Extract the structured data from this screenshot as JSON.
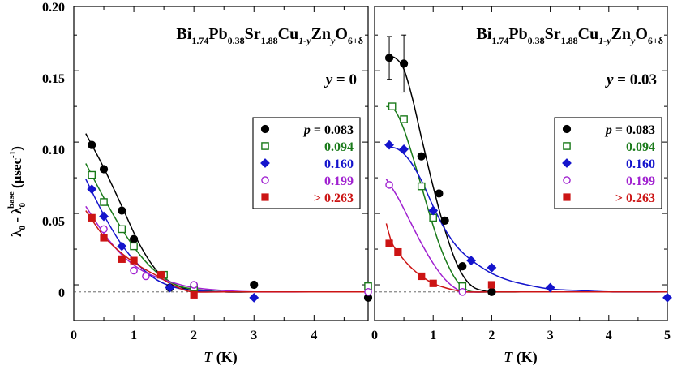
{
  "chart_data": {
    "type": "scatter",
    "ylabel": {
      "main": "λ",
      "sub0": "0",
      "mid": " - λ",
      "sub1": "0",
      "sup1": "base",
      "unit_open": " (μsec",
      "unit_sup": "-1",
      "unit_close": ")"
    },
    "ylim": [
      -0.02,
      0.2
    ],
    "yticks": [
      "0.20",
      "0.15",
      "0.10",
      "0.05",
      "0"
    ],
    "ytick_values": [
      0.2,
      0.15,
      0.1,
      0.05,
      0
    ],
    "panels": [
      {
        "id": "left",
        "formula": {
          "t1": "Bi",
          "s1": "1.74",
          "t2": "Pb",
          "s2": "0.38",
          "t3": "Sr",
          "s3": "1.88",
          "t4": "Cu",
          "s4": "1-y",
          "t5": "Zn",
          "s5": "y",
          "t6": "O",
          "s6": "6+δ"
        },
        "y_label": {
          "var": "y",
          "value": " = 0"
        },
        "xlabel": {
          "var": "T",
          "unit": " (K)"
        },
        "xlim": [
          0,
          4.9
        ],
        "xticks": [
          "0",
          "1",
          "2",
          "3",
          "4"
        ],
        "xtick_values": [
          0,
          1,
          2,
          3,
          4
        ],
        "series": [
          {
            "name": "p = 0.083",
            "label_var": "p",
            "label_rest": " = 0.083",
            "color": "#000000",
            "marker": "circle-filled",
            "x": [
              0.3,
              0.5,
              0.8,
              1.0,
              1.6,
              3.0,
              4.9
            ],
            "y": [
              0.103,
              0.086,
              0.057,
              0.037,
              0.003,
              0.005,
              -0.004
            ],
            "fit_x": [
              0.2,
              0.5,
              0.8,
              1.1,
              1.4,
              1.7,
              2.0,
              2.5,
              3.0,
              4.0,
              4.9
            ],
            "fit_y": [
              0.111,
              0.087,
              0.06,
              0.033,
              0.014,
              0.005,
              0.001,
              0.0,
              0.0,
              0.0,
              0.0
            ]
          },
          {
            "name": "0.094",
            "label_var": "",
            "label_rest": "0.094",
            "color": "#1a7a1a",
            "marker": "square-open",
            "x": [
              0.3,
              0.5,
              0.8,
              1.0,
              1.5,
              2.0,
              4.9
            ],
            "y": [
              0.082,
              0.063,
              0.044,
              0.032,
              0.012,
              0.003,
              0.004
            ],
            "fit_x": [
              0.2,
              0.5,
              0.8,
              1.1,
              1.4,
              1.7,
              2.0,
              2.5,
              3.0,
              4.0,
              4.9
            ],
            "fit_y": [
              0.09,
              0.066,
              0.044,
              0.026,
              0.013,
              0.005,
              0.002,
              0.0,
              0.0,
              0.0,
              0.0
            ]
          },
          {
            "name": "0.160",
            "label_var": "",
            "label_rest": "0.160",
            "color": "#1414cc",
            "marker": "diamond-filled",
            "x": [
              0.3,
              0.5,
              0.8,
              1.6,
              3.0
            ],
            "y": [
              0.072,
              0.053,
              0.032,
              0.003,
              -0.004
            ],
            "fit_x": [
              0.2,
              0.5,
              0.8,
              1.1,
              1.4,
              1.7,
              2.0,
              2.5,
              3.0,
              4.0,
              4.9
            ],
            "fit_y": [
              0.079,
              0.054,
              0.033,
              0.018,
              0.008,
              0.003,
              0.001,
              0.0,
              0.0,
              0.0,
              0.0
            ]
          },
          {
            "name": "0.199",
            "label_var": "",
            "label_rest": "0.199",
            "color": "#a020d0",
            "marker": "circle-open",
            "x": [
              0.5,
              1.0,
              1.2,
              2.0,
              4.9
            ],
            "y": [
              0.044,
              0.015,
              0.011,
              0.005,
              0.0
            ],
            "fit_x": [
              0.2,
              0.5,
              0.8,
              1.1,
              1.4,
              1.7,
              2.0,
              2.5,
              3.0,
              4.0,
              4.9
            ],
            "fit_y": [
              0.06,
              0.041,
              0.026,
              0.016,
              0.01,
              0.006,
              0.003,
              0.001,
              0.0,
              0.0,
              0.0
            ]
          },
          {
            "name": "> 0.263",
            "label_var": "",
            "label_rest": "> 0.263",
            "color": "#cc1414",
            "marker": "square-filled",
            "x": [
              0.3,
              0.5,
              0.8,
              1.0,
              1.45,
              2.0
            ],
            "y": [
              0.052,
              0.038,
              0.023,
              0.022,
              0.012,
              -0.002
            ],
            "fit_x": [
              0.2,
              0.5,
              0.8,
              1.1,
              1.4,
              1.6,
              1.8,
              2.0,
              2.5,
              3.0,
              4.0,
              4.9
            ],
            "fit_y": [
              0.057,
              0.039,
              0.027,
              0.018,
              0.011,
              0.006,
              0.002,
              0.0,
              0.0,
              0.0,
              0.0,
              0.0
            ]
          }
        ]
      },
      {
        "id": "right",
        "formula": {
          "t1": "Bi",
          "s1": "1.74",
          "t2": "Pb",
          "s2": "0.38",
          "t3": "Sr",
          "s3": "1.88",
          "t4": "Cu",
          "s4": "1-y",
          "t5": "Zn",
          "s5": "y",
          "t6": "O",
          "s6": "6+δ"
        },
        "y_label": {
          "var": "y",
          "value": " = 0.03"
        },
        "xlabel": {
          "var": "T",
          "unit": " (K)"
        },
        "xlim": [
          0,
          5
        ],
        "xticks": [
          "0",
          "1",
          "2",
          "3",
          "4",
          "5"
        ],
        "xtick_values": [
          0,
          1,
          2,
          3,
          4,
          5
        ],
        "series": [
          {
            "name": "p = 0.083",
            "label_var": "p",
            "label_rest": " = 0.083",
            "color": "#000000",
            "marker": "circle-filled",
            "x": [
              0.25,
              0.5,
              0.8,
              1.1,
              1.2,
              1.5,
              2.0
            ],
            "y": [
              0.164,
              0.16,
              0.095,
              0.069,
              0.05,
              0.018,
              0.0
            ],
            "yerr": [
              0.015,
              0.02,
              0,
              0,
              0,
              0,
              0
            ],
            "fit_x": [
              0.2,
              0.35,
              0.5,
              0.65,
              0.8,
              0.95,
              1.1,
              1.25,
              1.4,
              1.55,
              1.7,
              1.85,
              2.0,
              2.5,
              3.0,
              4.0,
              5.0
            ],
            "fit_y": [
              0.165,
              0.164,
              0.156,
              0.135,
              0.108,
              0.082,
              0.058,
              0.037,
              0.02,
              0.009,
              0.003,
              0.001,
              0.0,
              0.0,
              0.0,
              0.0,
              0.0
            ]
          },
          {
            "name": "0.094",
            "label_var": "",
            "label_rest": "0.094",
            "color": "#1a7a1a",
            "marker": "square-open",
            "x": [
              0.3,
              0.5,
              0.8,
              1.0,
              1.5
            ],
            "y": [
              0.13,
              0.121,
              0.074,
              0.052,
              0.004
            ],
            "fit_x": [
              0.2,
              0.35,
              0.5,
              0.65,
              0.8,
              0.95,
              1.1,
              1.25,
              1.4,
              1.55,
              1.7,
              2.0,
              2.5,
              3.0,
              4.0,
              5.0
            ],
            "fit_y": [
              0.13,
              0.127,
              0.114,
              0.095,
              0.074,
              0.053,
              0.034,
              0.019,
              0.008,
              0.002,
              0.0,
              0.0,
              0.0,
              0.0,
              0.0,
              0.0
            ]
          },
          {
            "name": "0.160",
            "label_var": "",
            "label_rest": "0.160",
            "color": "#1414cc",
            "marker": "diamond-filled",
            "x": [
              0.25,
              0.5,
              1.0,
              1.65,
              2.0,
              3.0,
              5.0
            ],
            "y": [
              0.103,
              0.1,
              0.057,
              0.022,
              0.017,
              0.003,
              -0.004
            ],
            "fit_x": [
              0.2,
              0.4,
              0.6,
              0.8,
              1.0,
              1.2,
              1.4,
              1.6,
              1.8,
              2.0,
              2.3,
              2.6,
              3.0,
              3.5,
              4.0,
              5.0
            ],
            "fit_y": [
              0.102,
              0.1,
              0.092,
              0.078,
              0.06,
              0.044,
              0.032,
              0.024,
              0.018,
              0.013,
              0.008,
              0.005,
              0.002,
              0.001,
              0.0,
              0.0
            ]
          },
          {
            "name": "0.199",
            "label_var": "",
            "label_rest": "0.199",
            "color": "#a020d0",
            "marker": "circle-open",
            "x": [
              0.25,
              1.5
            ],
            "y": [
              0.075,
              0.0
            ],
            "fit_x": [
              0.2,
              0.4,
              0.6,
              0.8,
              1.0,
              1.2,
              1.4,
              1.55,
              2.0,
              3.0,
              5.0
            ],
            "fit_y": [
              0.079,
              0.066,
              0.05,
              0.034,
              0.02,
              0.009,
              0.002,
              0.0,
              0.0,
              0.0,
              0.0
            ]
          },
          {
            "name": "> 0.263",
            "label_var": "",
            "label_rest": "> 0.263",
            "color": "#cc1414",
            "marker": "square-filled",
            "x": [
              0.25,
              0.4,
              0.8,
              1.0,
              2.0
            ],
            "y": [
              0.034,
              0.028,
              0.011,
              0.006,
              0.005
            ],
            "fit_x": [
              0.2,
              0.3,
              0.45,
              0.6,
              0.8,
              1.0,
              1.2,
              1.4,
              1.55,
              2.0,
              3.0,
              5.0
            ],
            "fit_y": [
              0.048,
              0.034,
              0.025,
              0.018,
              0.011,
              0.006,
              0.003,
              0.001,
              0.0,
              0.0,
              0.0,
              0.0
            ]
          }
        ]
      }
    ]
  }
}
